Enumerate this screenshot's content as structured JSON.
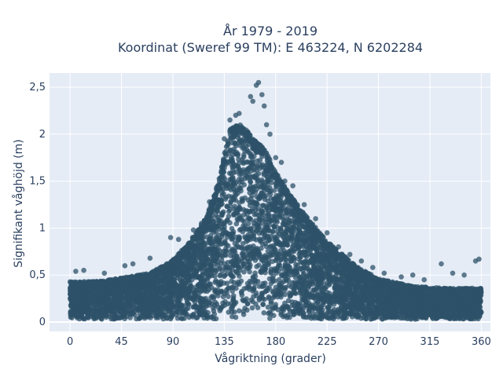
{
  "chart_data": {
    "type": "scatter",
    "title_line1": "År 1979 - 2019",
    "title_line2": "Koordinat (Sweref 99 TM): E 463224, N 6202284",
    "xlabel": "Vågriktning (grader)",
    "ylabel": "Signifikant våghöjd (m)",
    "xlim": [
      -18,
      368
    ],
    "ylim": [
      -0.1,
      2.65
    ],
    "xticks": [
      0,
      45,
      90,
      135,
      180,
      225,
      270,
      315,
      360
    ],
    "xtick_labels": [
      "0",
      "45",
      "90",
      "135",
      "180",
      "225",
      "270",
      "315",
      "360"
    ],
    "yticks": [
      0,
      0.5,
      1,
      1.5,
      2,
      2.5
    ],
    "ytick_labels": [
      "0",
      "0,5",
      "1",
      "1,5",
      "2",
      "2,5"
    ],
    "marker_color": "#2e5268",
    "plot_bg": "#e5ecf6",
    "series": [
      {
        "upper_envelope": [
          [
            0,
            0.43
          ],
          [
            20,
            0.43
          ],
          [
            45,
            0.47
          ],
          [
            70,
            0.52
          ],
          [
            90,
            0.66
          ],
          [
            105,
            0.86
          ],
          [
            120,
            1.13
          ],
          [
            130,
            1.5
          ],
          [
            135,
            1.78
          ],
          [
            140,
            2.05
          ],
          [
            150,
            2.12
          ],
          [
            160,
            1.95
          ],
          [
            170,
            1.85
          ],
          [
            180,
            1.6
          ],
          [
            190,
            1.4
          ],
          [
            205,
            1.15
          ],
          [
            225,
            0.86
          ],
          [
            250,
            0.6
          ],
          [
            270,
            0.46
          ],
          [
            300,
            0.38
          ],
          [
            330,
            0.36
          ],
          [
            360,
            0.36
          ]
        ],
        "outliers": [
          [
            5,
            0.54
          ],
          [
            12,
            0.55
          ],
          [
            30,
            0.52
          ],
          [
            48,
            0.6
          ],
          [
            55,
            0.62
          ],
          [
            70,
            0.68
          ],
          [
            88,
            0.9
          ],
          [
            95,
            0.88
          ],
          [
            108,
            0.98
          ],
          [
            115,
            1.05
          ],
          [
            122,
            1.28
          ],
          [
            135,
            1.95
          ],
          [
            140,
            2.15
          ],
          [
            145,
            2.2
          ],
          [
            148,
            2.22
          ],
          [
            152,
            2.05
          ],
          [
            158,
            2.4
          ],
          [
            160,
            2.35
          ],
          [
            163,
            2.52
          ],
          [
            165,
            2.55
          ],
          [
            168,
            2.42
          ],
          [
            170,
            2.3
          ],
          [
            172,
            2.1
          ],
          [
            175,
            2.0
          ],
          [
            180,
            1.75
          ],
          [
            185,
            1.7
          ],
          [
            188,
            1.5
          ],
          [
            195,
            1.45
          ],
          [
            205,
            1.25
          ],
          [
            215,
            1.1
          ],
          [
            225,
            0.95
          ],
          [
            235,
            0.8
          ],
          [
            245,
            0.72
          ],
          [
            255,
            0.65
          ],
          [
            265,
            0.58
          ],
          [
            275,
            0.52
          ],
          [
            290,
            0.48
          ],
          [
            300,
            0.5
          ],
          [
            310,
            0.45
          ],
          [
            325,
            0.62
          ],
          [
            335,
            0.52
          ],
          [
            345,
            0.5
          ],
          [
            355,
            0.65
          ],
          [
            358,
            0.67
          ]
        ]
      }
    ]
  }
}
